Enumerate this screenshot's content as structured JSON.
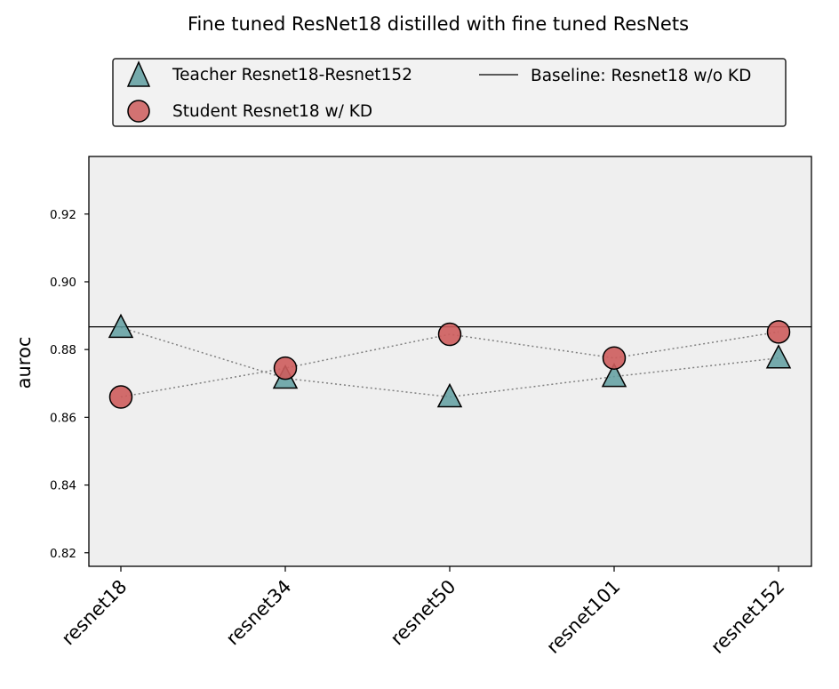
{
  "chart_data": {
    "type": "scatter",
    "title": "Fine tuned ResNet18 distilled with fine tuned ResNets",
    "xlabel": "",
    "ylabel": "auroc",
    "categories": [
      "resnet18",
      "resnet34",
      "resnet50",
      "resnet101",
      "resnet152"
    ],
    "ylim": [
      0.816,
      0.937
    ],
    "yticks": [
      0.82,
      0.84,
      0.86,
      0.88,
      0.9,
      0.92
    ],
    "ytick_labels": [
      "0.82",
      "0.84",
      "0.86",
      "0.88",
      "0.90",
      "0.92"
    ],
    "series": [
      {
        "name": "Teacher Resnet18-Resnet152",
        "marker": "triangle",
        "color": "#5f9ea0",
        "values": [
          0.8865,
          0.8715,
          0.866,
          0.872,
          0.8775
        ]
      },
      {
        "name": "Student Resnet18 w/ KD",
        "marker": "circle",
        "color": "#cd5c5c",
        "values": [
          0.866,
          0.8745,
          0.8845,
          0.8775,
          0.8852
        ]
      }
    ],
    "baseline": {
      "name": "Baseline: Resnet18 w/o KD",
      "value": 0.8867,
      "color": "#000000"
    },
    "connector_style": "dotted",
    "legend_position": "top-center",
    "grid": false,
    "plot_background": "#efefef"
  }
}
